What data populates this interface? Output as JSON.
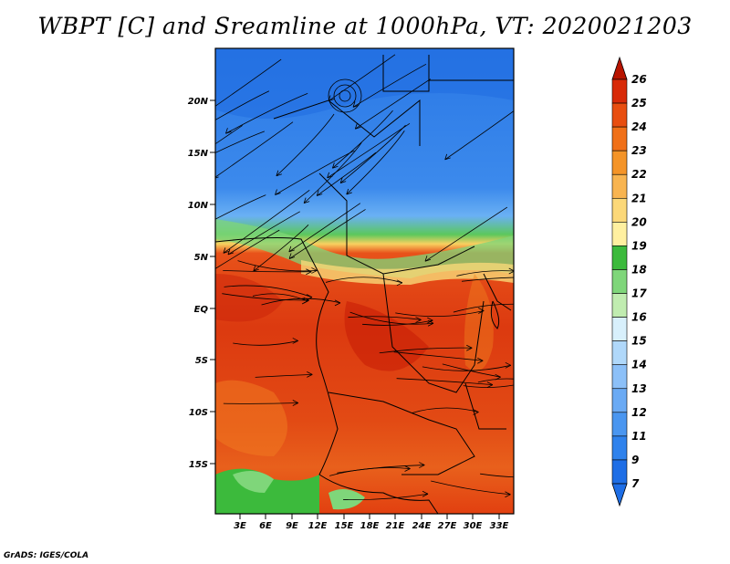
{
  "title": "WBPT [C] and Sreamline at 1000hPa, VT: 2020021203",
  "credit": "GrADS: IGES/COLA",
  "map": {
    "lat_ticks": [
      "20N",
      "15N",
      "10N",
      "5N",
      "EQ",
      "5S",
      "10S",
      "15S"
    ],
    "lon_ticks": [
      "3E",
      "6E",
      "9E",
      "12E",
      "15E",
      "18E",
      "21E",
      "24E",
      "27E",
      "30E",
      "33E"
    ]
  },
  "colorbar": {
    "labels": [
      "7",
      "9",
      "11",
      "12",
      "13",
      "14",
      "15",
      "16",
      "17",
      "18",
      "19",
      "20",
      "21",
      "22",
      "23",
      "24",
      "25",
      "26"
    ],
    "colors": [
      "#1e6ee6",
      "#2f82ec",
      "#4a96f0",
      "#6aaaf4",
      "#8cc0f8",
      "#b0d8fa",
      "#d8f0fc",
      "#c0ecb0",
      "#7fd67a",
      "#3cba3c",
      "#fff0a0",
      "#fcd878",
      "#f8b450",
      "#f49428",
      "#f07018",
      "#e84e10",
      "#d82a08",
      "#b81400"
    ],
    "min": 7,
    "max": 26
  }
}
